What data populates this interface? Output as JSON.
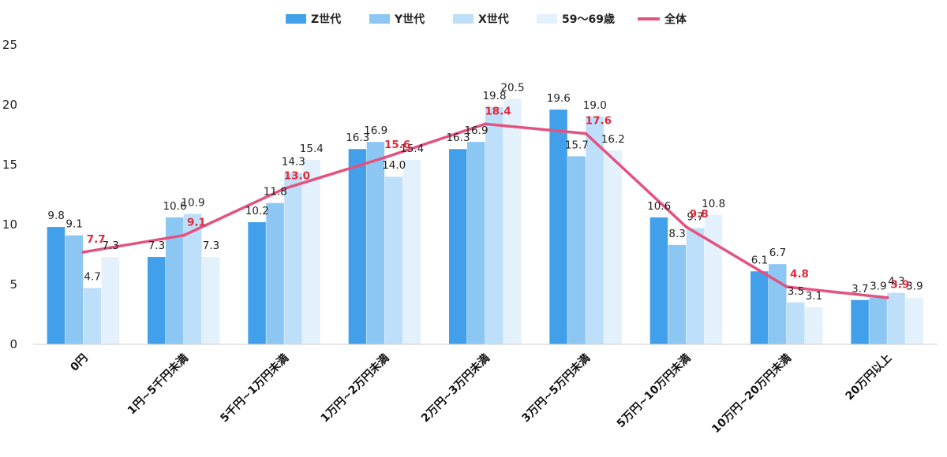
{
  "chart_data": {
    "type": "bar",
    "categories": [
      "0円",
      "1円~5千円未満",
      "5千円~1万円未満",
      "1万円~2万円未満",
      "2万円~3万円未満",
      "3万円~5万円未満",
      "5万円~10万円未満",
      "10万円~20万円未満",
      "20万円以上"
    ],
    "series": [
      {
        "name": "Z世代",
        "values": [
          9.8,
          7.3,
          10.2,
          16.3,
          16.3,
          19.6,
          10.6,
          6.1,
          3.7
        ],
        "color": "#42a0ea"
      },
      {
        "name": "Y世代",
        "values": [
          9.1,
          10.6,
          11.8,
          16.9,
          16.9,
          15.7,
          8.3,
          6.7,
          3.9
        ],
        "color": "#8cc6f3"
      },
      {
        "name": "X世代",
        "values": [
          4.7,
          10.9,
          14.3,
          14.0,
          19.8,
          19.0,
          9.7,
          3.5,
          4.3
        ],
        "color": "#bddffa"
      },
      {
        "name": "59～69歳",
        "values": [
          7.3,
          7.3,
          15.4,
          15.4,
          20.5,
          16.2,
          10.8,
          3.1,
          3.9
        ],
        "color": "#e3f1fd"
      }
    ],
    "line_series": {
      "name": "全体",
      "values": [
        7.7,
        9.1,
        13.0,
        15.6,
        18.4,
        17.6,
        9.8,
        4.8,
        3.9
      ],
      "color": "#e4527f"
    },
    "line_label_color": "#e0293a",
    "ylim": [
      0,
      25
    ],
    "yticks": [
      "0",
      "5",
      "10",
      "15",
      "20",
      "25"
    ],
    "grid": false,
    "legend_position": "top"
  }
}
